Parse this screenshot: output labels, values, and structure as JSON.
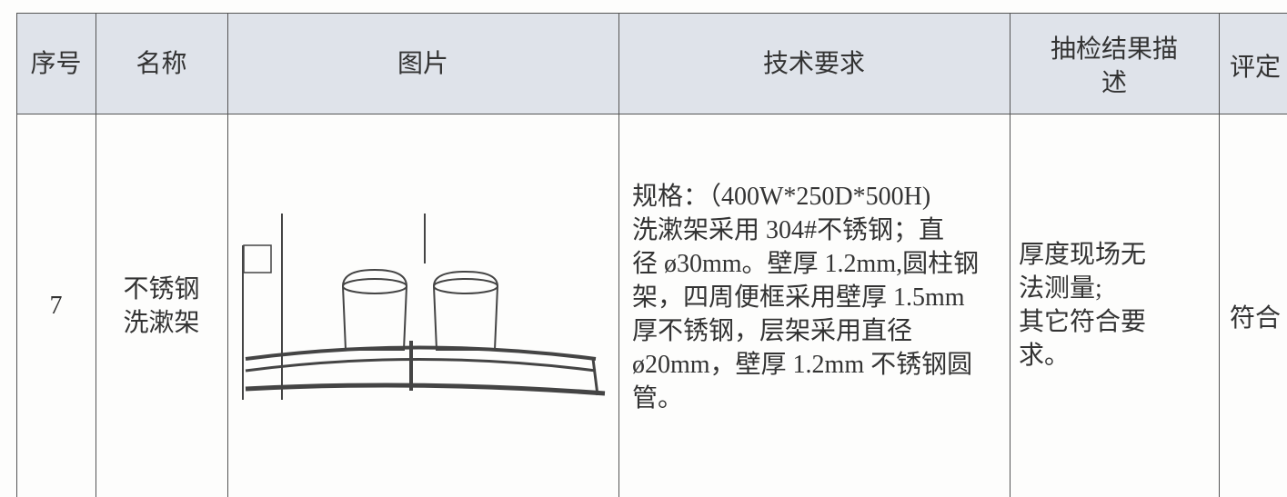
{
  "table": {
    "header": [
      "序号",
      "名称",
      "图片",
      "技术要求",
      [
        "抽检结果描",
        "述"
      ],
      "评定"
    ],
    "rows": [
      [
        "7",
        [
          "不锈钢",
          "洗漱架"
        ],
        [
          "规格：（400W*250D*500H)",
          "洗漱架采用 304#不锈钢；直",
          "径 ø30mm。壁厚 1.2mm,圆柱钢",
          "架，四周便框采用壁厚 1.5mm",
          "厚不锈钢，层架采用直径",
          "ø20mm，壁厚 1.2mm 不锈钢圆",
          "管。"
        ],
        [
          "厚度现场无",
          "法测量;",
          "其它符合要",
          "求。"
        ],
        "符合"
      ]
    ]
  }
}
